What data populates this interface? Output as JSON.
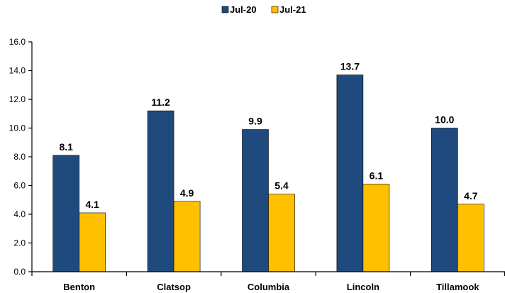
{
  "chart_data": {
    "type": "bar",
    "categories": [
      "Benton",
      "Clatsop",
      "Columbia",
      "Lincoln",
      "Tillamook"
    ],
    "series": [
      {
        "name": "Jul-20",
        "values": [
          8.1,
          11.2,
          9.9,
          13.7,
          10.0
        ],
        "color": "#1F4A7E"
      },
      {
        "name": "Jul-21",
        "values": [
          4.1,
          4.9,
          5.4,
          6.1,
          4.7
        ],
        "color": "#FFC000"
      }
    ],
    "ylim": [
      0,
      16
    ],
    "ytick_step": 2,
    "ytick_decimals": 1,
    "data_label_decimals": 1,
    "legend_position": "top-center",
    "grid": false,
    "title": "",
    "xlabel": "",
    "ylabel": ""
  }
}
